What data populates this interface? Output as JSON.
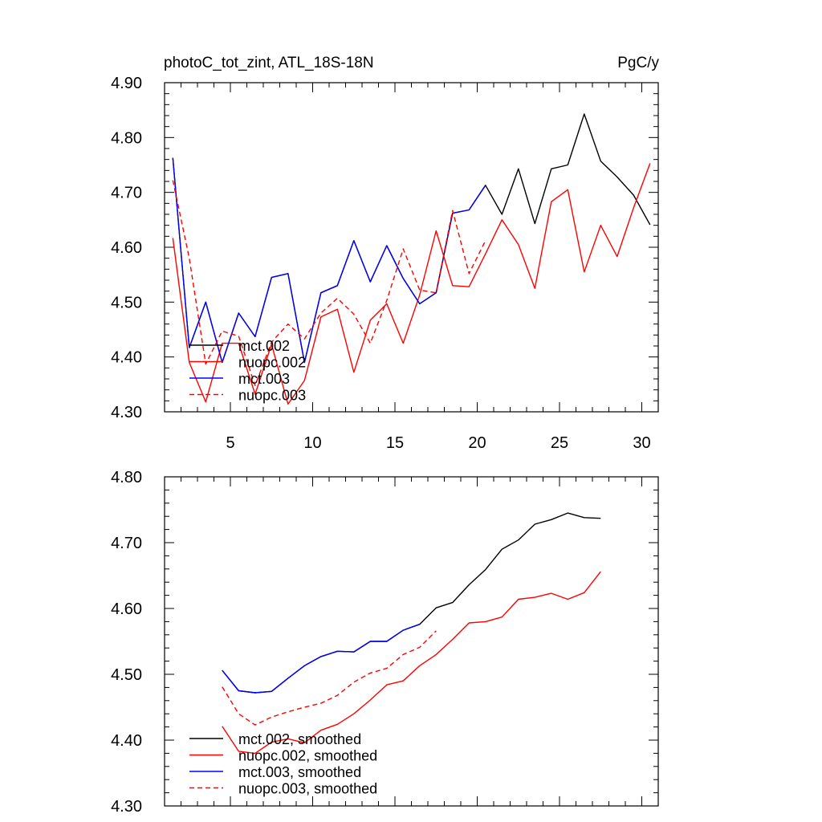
{
  "chart_data": [
    {
      "type": "line",
      "title": "photoC_tot_zint, ATL_18S-18N",
      "units": "PgC/y",
      "xlabel": "",
      "ylabel": "",
      "xlim": [
        1,
        31
      ],
      "ylim": [
        4.3,
        4.9
      ],
      "xticks": [
        5,
        10,
        15,
        20,
        25,
        30
      ],
      "xtick_labels": [
        "5",
        "10",
        "15",
        "20",
        "25",
        "30"
      ],
      "yticks": [
        4.3,
        4.4,
        4.5,
        4.6,
        4.7,
        4.8,
        4.9
      ],
      "ytick_labels": [
        "4.30",
        "4.40",
        "4.50",
        "4.60",
        "4.70",
        "4.80",
        "4.90"
      ],
      "legend_position": "bottom-left",
      "series": [
        {
          "name": "mct.002",
          "color": "#000000",
          "dash": "solid",
          "x": [
            1.5,
            2.5,
            3.5,
            4.5,
            5.5,
            6.5,
            7.5,
            8.5,
            9.5,
            10.5,
            11.5,
            12.5,
            13.5,
            14.5,
            15.5,
            16.5,
            17.5,
            18.5,
            19.5,
            20.5,
            21.5,
            22.5,
            23.5,
            24.5,
            25.5,
            26.5,
            27.5,
            28.5,
            29.5,
            30.5
          ],
          "values": [
            4.763,
            4.417,
            4.5,
            4.39,
            4.48,
            4.437,
            4.545,
            4.552,
            4.39,
            4.517,
            4.53,
            4.612,
            4.537,
            4.603,
            4.543,
            4.497,
            4.517,
            4.662,
            4.668,
            4.713,
            4.66,
            4.743,
            4.643,
            4.743,
            4.75,
            4.843,
            4.757,
            4.728,
            4.695,
            4.641
          ]
        },
        {
          "name": "nuopc.002",
          "color": "#ff0000",
          "dash": "solid",
          "x": [
            1.5,
            2.5,
            3.5,
            4.5,
            5.5,
            6.5,
            7.5,
            8.5,
            9.5,
            10.5,
            11.5,
            12.5,
            13.5,
            14.5,
            15.5,
            16.5,
            17.5,
            18.5,
            19.5,
            20.5,
            21.5,
            22.5,
            23.5,
            24.5,
            25.5,
            26.5,
            27.5,
            28.5,
            29.5,
            30.5
          ],
          "values": [
            4.617,
            4.39,
            4.318,
            4.425,
            4.425,
            4.332,
            4.423,
            4.314,
            4.357,
            4.473,
            4.487,
            4.372,
            4.467,
            4.497,
            4.425,
            4.513,
            4.63,
            4.53,
            4.528,
            4.588,
            4.65,
            4.605,
            4.525,
            4.683,
            4.705,
            4.555,
            4.64,
            4.583,
            4.672,
            4.753
          ]
        },
        {
          "name": "mct.003",
          "color": "#0000ff",
          "dash": "solid",
          "x": [
            1.5,
            2.5,
            3.5,
            4.5,
            5.5,
            6.5,
            7.5,
            8.5,
            9.5,
            10.5,
            11.5,
            12.5,
            13.5,
            14.5,
            15.5,
            16.5,
            17.5,
            18.5,
            19.5,
            20.5
          ],
          "values": [
            4.763,
            4.417,
            4.5,
            4.39,
            4.48,
            4.437,
            4.545,
            4.552,
            4.39,
            4.517,
            4.53,
            4.612,
            4.537,
            4.603,
            4.543,
            4.497,
            4.517,
            4.662,
            4.668,
            4.713
          ]
        },
        {
          "name": "nuopc.003",
          "color": "#ff0000",
          "dash": "dashed",
          "x": [
            1.5,
            2.5,
            3.5,
            4.5,
            5.5,
            6.5,
            7.5,
            8.5,
            9.5,
            10.5,
            11.5,
            12.5,
            13.5,
            14.5,
            15.5,
            16.5,
            17.5,
            18.5,
            19.5,
            20.5
          ],
          "values": [
            4.722,
            4.58,
            4.387,
            4.447,
            4.438,
            4.348,
            4.427,
            4.46,
            4.433,
            4.48,
            4.507,
            4.478,
            4.425,
            4.503,
            4.597,
            4.522,
            4.517,
            4.667,
            4.552,
            4.612
          ]
        }
      ]
    },
    {
      "type": "line",
      "title": "",
      "xlabel": "",
      "ylabel": "",
      "xlim": [
        1,
        31
      ],
      "ylim": [
        4.3,
        4.8
      ],
      "xticks": [
        5,
        10,
        15,
        20,
        25,
        30
      ],
      "yticks": [
        4.3,
        4.4,
        4.5,
        4.6,
        4.7,
        4.8
      ],
      "ytick_labels": [
        "4.30",
        "4.40",
        "4.50",
        "4.60",
        "4.70",
        "4.80"
      ],
      "legend_position": "bottom-left",
      "series": [
        {
          "name": "mct.002, smoothed",
          "color": "#000000",
          "dash": "solid",
          "x": [
            4.5,
            5.5,
            6.5,
            7.5,
            8.5,
            9.5,
            10.5,
            11.5,
            12.5,
            13.5,
            14.5,
            15.5,
            16.5,
            17.5,
            18.5,
            19.5,
            20.5,
            21.5,
            22.5,
            23.5,
            24.5,
            25.5,
            26.5,
            27.5
          ],
          "values": [
            4.506,
            4.475,
            4.472,
            4.474,
            4.494,
            4.513,
            4.527,
            4.535,
            4.534,
            4.55,
            4.55,
            4.567,
            4.576,
            4.601,
            4.609,
            4.636,
            4.659,
            4.69,
            4.704,
            4.728,
            4.735,
            4.745,
            4.738,
            4.737
          ]
        },
        {
          "name": "nuopc.002, smoothed",
          "color": "#ff0000",
          "dash": "solid",
          "x": [
            4.5,
            5.5,
            6.5,
            7.5,
            8.5,
            9.5,
            10.5,
            11.5,
            12.5,
            13.5,
            14.5,
            15.5,
            16.5,
            17.5,
            18.5,
            19.5,
            20.5,
            21.5,
            22.5,
            23.5,
            24.5,
            25.5,
            26.5,
            27.5
          ],
          "values": [
            4.421,
            4.383,
            4.38,
            4.397,
            4.402,
            4.396,
            4.415,
            4.424,
            4.44,
            4.461,
            4.484,
            4.49,
            4.513,
            4.53,
            4.553,
            4.578,
            4.58,
            4.587,
            4.614,
            4.617,
            4.623,
            4.614,
            4.624,
            4.656
          ]
        },
        {
          "name": "mct.003, smoothed",
          "color": "#0000ff",
          "dash": "solid",
          "x": [
            4.5,
            5.5,
            6.5,
            7.5,
            8.5,
            9.5,
            10.5,
            11.5,
            12.5,
            13.5,
            14.5,
            15.5,
            16.5
          ],
          "values": [
            4.506,
            4.475,
            4.472,
            4.474,
            4.494,
            4.513,
            4.527,
            4.535,
            4.534,
            4.55,
            4.55,
            4.567,
            4.576
          ]
        },
        {
          "name": "nuopc.003, smoothed",
          "color": "#ff0000",
          "dash": "dashed",
          "x": [
            4.5,
            5.5,
            6.5,
            7.5,
            8.5,
            9.5,
            10.5,
            11.5,
            12.5,
            13.5,
            14.5,
            15.5,
            16.5,
            17.5
          ],
          "values": [
            4.481,
            4.44,
            4.423,
            4.435,
            4.443,
            4.45,
            4.456,
            4.468,
            4.488,
            4.502,
            4.509,
            4.53,
            4.541,
            4.566
          ]
        }
      ]
    }
  ]
}
